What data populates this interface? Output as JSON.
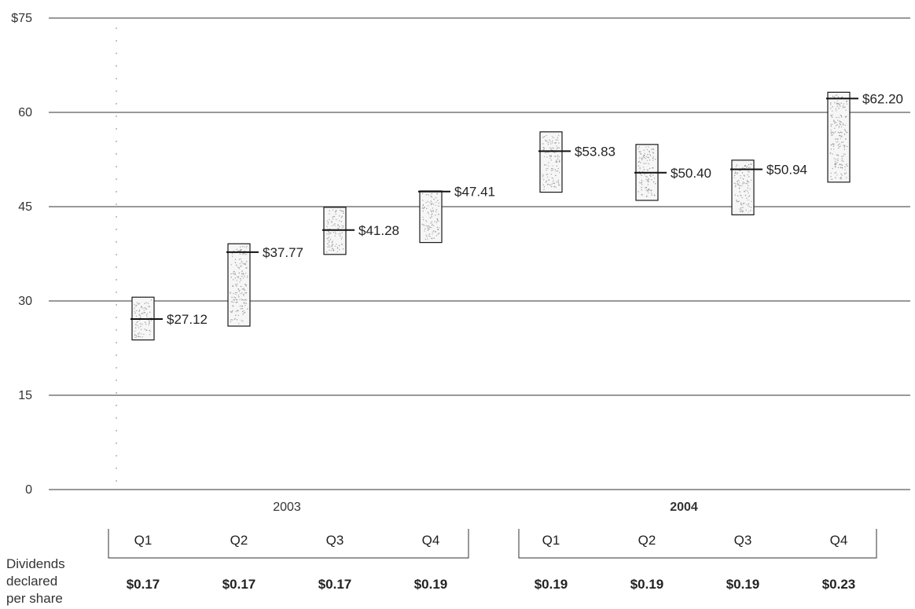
{
  "chart_data": {
    "type": "range-bar",
    "y_ticks": [
      "$75",
      "60",
      "45",
      "30",
      "15",
      "0"
    ],
    "ylim": [
      0,
      75
    ],
    "grid": true,
    "years": [
      {
        "label": "2003",
        "bold": false
      },
      {
        "label": "2004",
        "bold": true
      }
    ],
    "quarters": [
      {
        "year": "2003",
        "quarter": "Q1",
        "low": 23.8,
        "high": 30.6,
        "close": 27.12,
        "close_label": "$27.12",
        "dividend": "$0.17"
      },
      {
        "year": "2003",
        "quarter": "Q2",
        "low": 26.0,
        "high": 39.1,
        "close": 37.77,
        "close_label": "$37.77",
        "dividend": "$0.17"
      },
      {
        "year": "2003",
        "quarter": "Q3",
        "low": 37.4,
        "high": 44.9,
        "close": 41.28,
        "close_label": "$41.28",
        "dividend": "$0.17"
      },
      {
        "year": "2003",
        "quarter": "Q4",
        "low": 39.3,
        "high": 47.5,
        "close": 47.41,
        "close_label": "$47.41",
        "dividend": "$0.19"
      },
      {
        "year": "2004",
        "quarter": "Q1",
        "low": 47.3,
        "high": 56.9,
        "close": 53.83,
        "close_label": "$53.83",
        "dividend": "$0.19"
      },
      {
        "year": "2004",
        "quarter": "Q2",
        "low": 46.0,
        "high": 54.9,
        "close": 50.4,
        "close_label": "$50.40",
        "dividend": "$0.19"
      },
      {
        "year": "2004",
        "quarter": "Q3",
        "low": 43.7,
        "high": 52.4,
        "close": 50.94,
        "close_label": "$50.94",
        "dividend": "$0.19"
      },
      {
        "year": "2004",
        "quarter": "Q4",
        "low": 48.9,
        "high": 63.2,
        "close": 62.2,
        "close_label": "$62.20",
        "dividend": "$0.23"
      }
    ],
    "dividends_label": [
      "Dividends",
      "declared",
      "per share"
    ]
  },
  "colors": {
    "grid": "#333333",
    "bar_outline": "#1a1a1a",
    "bar_fill": "#f6f6f6",
    "speckle": "#888888"
  }
}
